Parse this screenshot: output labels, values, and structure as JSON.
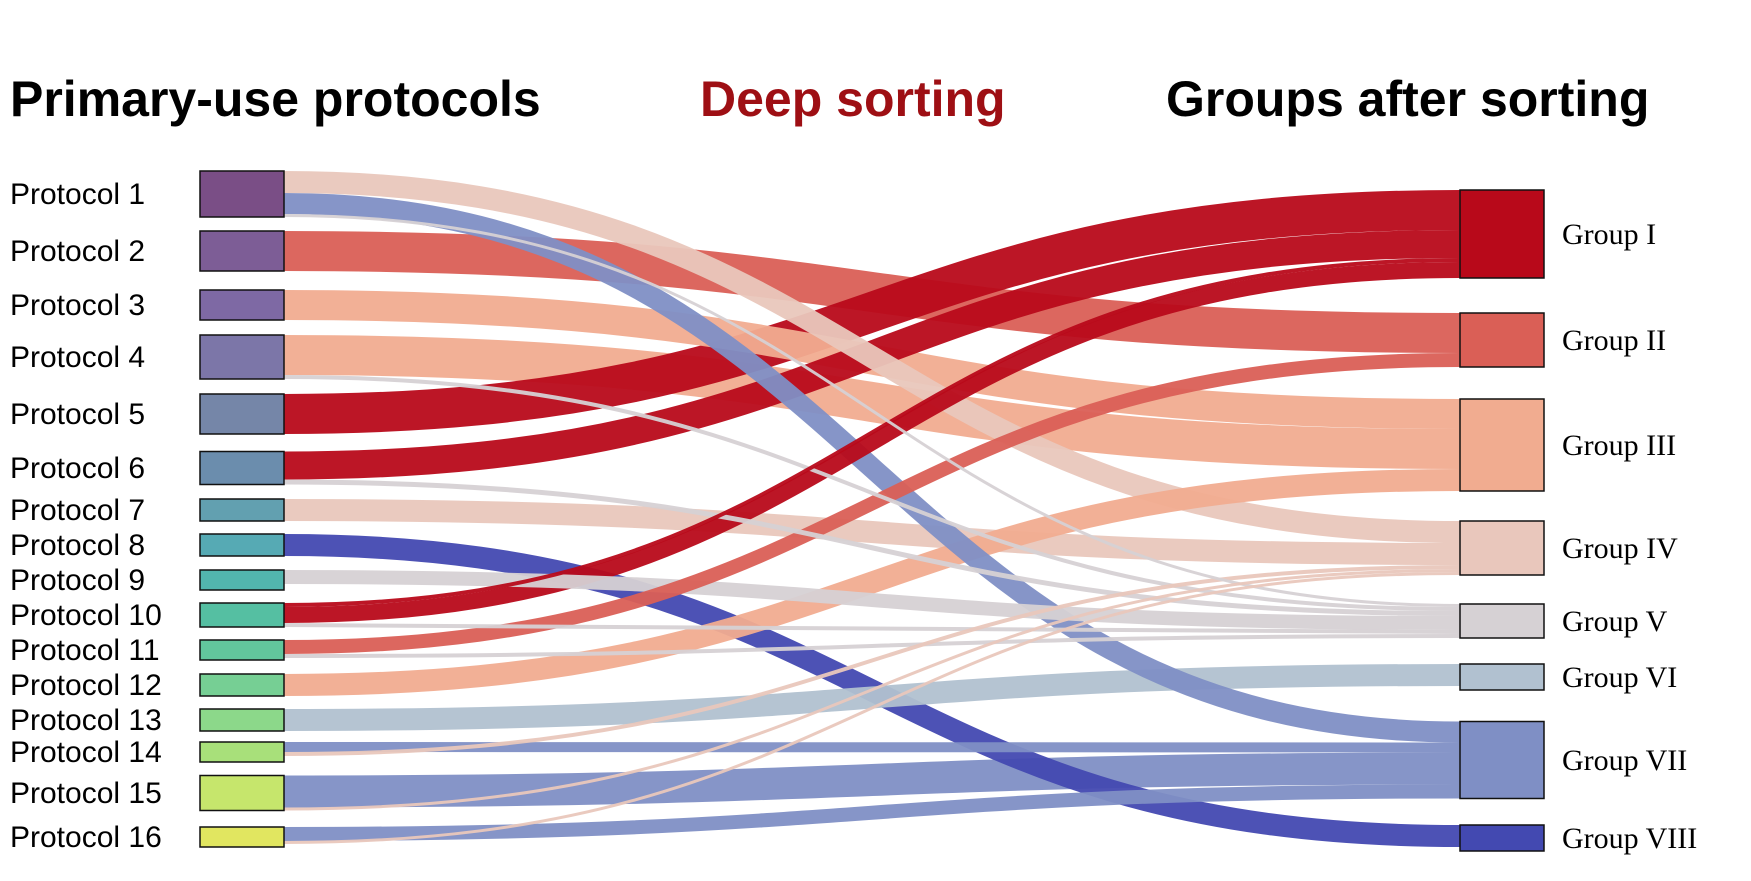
{
  "headers": {
    "left": "Primary-use protocols",
    "middle": "Deep sorting",
    "right": "Groups after sorting"
  },
  "colors": {
    "header_left": "#000000",
    "header_middle": "#9e0f14",
    "header_right": "#000000"
  },
  "sources": [
    {
      "id": "p1",
      "label": "Protocol 1",
      "color": "#7a4e86"
    },
    {
      "id": "p2",
      "label": "Protocol 2",
      "color": "#7d5d96"
    },
    {
      "id": "p3",
      "label": "Protocol 3",
      "color": "#7e69a4"
    },
    {
      "id": "p4",
      "label": "Protocol 4",
      "color": "#7c76a8"
    },
    {
      "id": "p5",
      "label": "Protocol 5",
      "color": "#7586a8"
    },
    {
      "id": "p6",
      "label": "Protocol 6",
      "color": "#6b8dad"
    },
    {
      "id": "p7",
      "label": "Protocol 7",
      "color": "#62a0b0"
    },
    {
      "id": "p8",
      "label": "Protocol 8",
      "color": "#56aab4"
    },
    {
      "id": "p9",
      "label": "Protocol 9",
      "color": "#52b6ae"
    },
    {
      "id": "p10",
      "label": "Protocol 10",
      "color": "#55bfa2"
    },
    {
      "id": "p11",
      "label": "Protocol 11",
      "color": "#62c69c"
    },
    {
      "id": "p12",
      "label": "Protocol 12",
      "color": "#76cf94"
    },
    {
      "id": "p13",
      "label": "Protocol 13",
      "color": "#8cd88a"
    },
    {
      "id": "p14",
      "label": "Protocol 14",
      "color": "#a8e07a"
    },
    {
      "id": "p15",
      "label": "Protocol 15",
      "color": "#c6e66c"
    },
    {
      "id": "p16",
      "label": "Protocol 16",
      "color": "#e1e660"
    }
  ],
  "targets": [
    {
      "id": "g1",
      "label": "Group I",
      "color": "#b8091a"
    },
    {
      "id": "g2",
      "label": "Group II",
      "color": "#da5f56"
    },
    {
      "id": "g3",
      "label": "Group III",
      "color": "#f1ac90"
    },
    {
      "id": "g4",
      "label": "Group IV",
      "color": "#e9c7bc"
    },
    {
      "id": "g5",
      "label": "Group V",
      "color": "#d6d1d4"
    },
    {
      "id": "g6",
      "label": "Group VI",
      "color": "#b1c1d0"
    },
    {
      "id": "g7",
      "label": "Group VII",
      "color": "#7f8fc5"
    },
    {
      "id": "g8",
      "label": "Group VIII",
      "color": "#4349b1"
    }
  ],
  "flows": [
    {
      "source": "p1",
      "target": "g4",
      "value": 22
    },
    {
      "source": "p1",
      "target": "g7",
      "value": 21
    },
    {
      "source": "p1",
      "target": "g5",
      "value": 3
    },
    {
      "source": "p2",
      "target": "g2",
      "value": 40
    },
    {
      "source": "p3",
      "target": "g3",
      "value": 30
    },
    {
      "source": "p4",
      "target": "g3",
      "value": 40
    },
    {
      "source": "p4",
      "target": "g5",
      "value": 4
    },
    {
      "source": "p5",
      "target": "g1",
      "value": 40
    },
    {
      "source": "p6",
      "target": "g1",
      "value": 28
    },
    {
      "source": "p6",
      "target": "g5",
      "value": 5
    },
    {
      "source": "p7",
      "target": "g4",
      "value": 22
    },
    {
      "source": "p8",
      "target": "g8",
      "value": 22
    },
    {
      "source": "p9",
      "target": "g5",
      "value": 14
    },
    {
      "source": "p10",
      "target": "g1",
      "value": 4
    },
    {
      "source": "p10",
      "target": "g1",
      "value": 16
    },
    {
      "source": "p10",
      "target": "g5",
      "value": 4
    },
    {
      "source": "p11",
      "target": "g2",
      "value": 14
    },
    {
      "source": "p11",
      "target": "g5",
      "value": 4
    },
    {
      "source": "p12",
      "target": "g3",
      "value": 22
    },
    {
      "source": "p13",
      "target": "g6",
      "value": 22
    },
    {
      "source": "p14",
      "target": "g7",
      "value": 10
    },
    {
      "source": "p14",
      "target": "g4",
      "value": 4
    },
    {
      "source": "p15",
      "target": "g7",
      "value": 32
    },
    {
      "source": "p15",
      "target": "g4",
      "value": 3
    },
    {
      "source": "p16",
      "target": "g7",
      "value": 14
    },
    {
      "source": "p16",
      "target": "g4",
      "value": 3
    }
  ]
}
